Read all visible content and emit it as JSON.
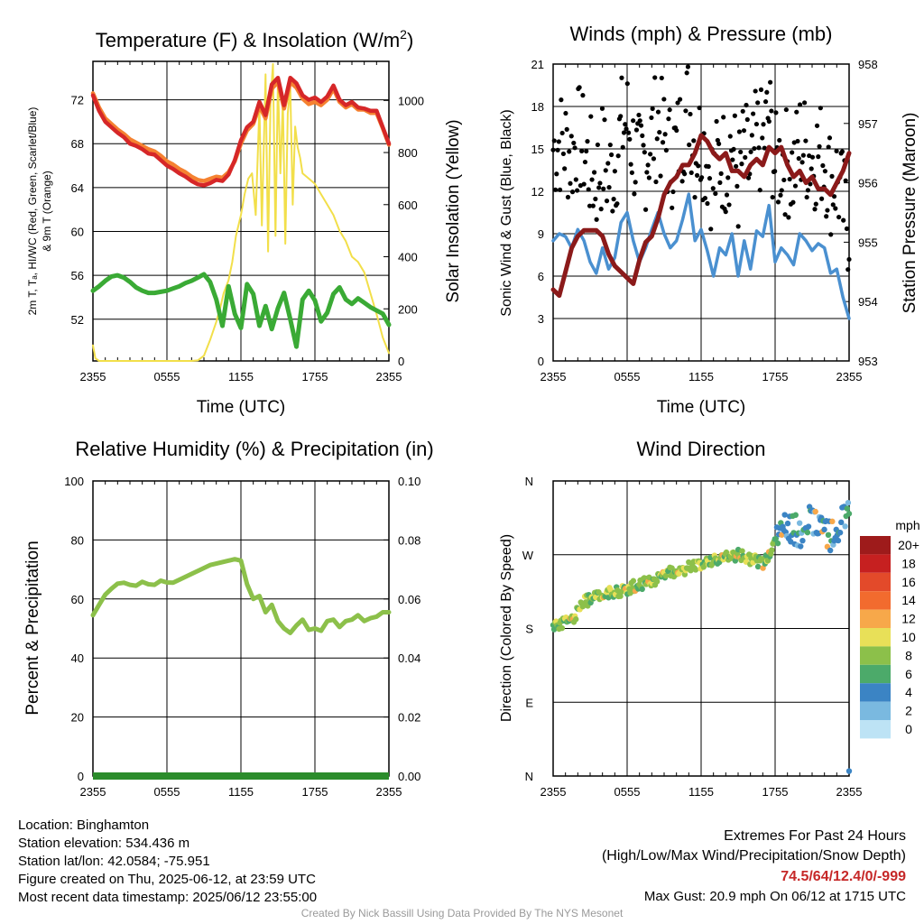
{
  "chart_data": [
    {
      "id": "temp",
      "type": "line",
      "title": "Temperature (F) & Insolation (W/m",
      "title_sup": "2",
      "title_end": ")",
      "xlabel": "Time (UTC)",
      "ylabel_left_lines": [
        "2m T, Tₐ, HI/WC (Red, Green, Scarlet/Blue)",
        "& 9m T (Orange)"
      ],
      "ylabel_right": "Solar Insolation (Yellow)",
      "x_ticks": [
        "2355",
        "0555",
        "1155",
        "1755",
        "2355"
      ],
      "y_left_ticks": [
        "52",
        "56",
        "60",
        "64",
        "68",
        "72"
      ],
      "y_left_lim": [
        48.2,
        75.5
      ],
      "y_right_ticks": [
        "0",
        "200",
        "400",
        "600",
        "800",
        "1000"
      ],
      "y_right_lim": [
        0,
        1150
      ],
      "series": [
        {
          "color": "#d62728",
          "x": [
            0,
            0.5,
            1,
            1.5,
            2,
            2.5,
            3,
            3.5,
            4,
            4.5,
            5,
            5.5,
            6,
            6.5,
            7,
            7.5,
            8,
            8.5,
            9,
            9.5,
            10,
            10.5,
            11,
            11.5,
            12,
            12.5,
            13,
            13.5,
            14,
            14.5,
            15,
            15.5,
            16,
            16.5,
            17,
            17.5,
            18,
            18.5,
            19,
            19.5,
            20,
            20.5,
            21,
            21.5,
            22,
            22.5,
            23,
            23.5,
            24
          ],
          "values": [
            72.4,
            71.0,
            70.0,
            69.5,
            69.0,
            68.6,
            68.0,
            67.8,
            67.5,
            67.1,
            67.0,
            66.5,
            66.0,
            65.7,
            65.3,
            65.0,
            64.6,
            64.3,
            64.2,
            64.4,
            64.7,
            64.6,
            65.2,
            66.5,
            68.3,
            69.5,
            70.0,
            71.8,
            70.6,
            73.4,
            74.0,
            71.5,
            74.0,
            73.5,
            72.4,
            72.0,
            72.2,
            71.8,
            72.3,
            73.3,
            72.0,
            71.5,
            71.8,
            71.3,
            71.2,
            71.0,
            71.0,
            69.5,
            68.0
          ]
        },
        {
          "color": "#f58231",
          "x": [
            0,
            0.5,
            1,
            1.5,
            2,
            2.5,
            3,
            3.5,
            4,
            4.5,
            5,
            5.5,
            6,
            6.5,
            7,
            7.5,
            8,
            8.5,
            9,
            9.5,
            10,
            10.5,
            11,
            11.5,
            12,
            12.5,
            13,
            13.5,
            14,
            14.5,
            15,
            15.5,
            16,
            16.5,
            17,
            17.5,
            18,
            18.5,
            19,
            19.5,
            20,
            20.5,
            21,
            21.5,
            22,
            22.5,
            23,
            23.5,
            24
          ],
          "values": [
            72.6,
            71.3,
            70.3,
            69.8,
            69.3,
            68.9,
            68.4,
            68.1,
            67.8,
            67.5,
            67.3,
            66.9,
            66.4,
            66.1,
            65.7,
            65.4,
            65.0,
            64.7,
            64.6,
            64.8,
            65.0,
            64.9,
            65.4,
            66.4,
            68.0,
            69.2,
            69.8,
            71.4,
            70.3,
            73.0,
            73.6,
            71.2,
            73.6,
            73.1,
            72.1,
            71.6,
            71.8,
            71.5,
            72.0,
            73.0,
            71.8,
            71.3,
            71.6,
            71.1,
            71.1,
            70.8,
            70.8,
            69.4,
            67.9
          ]
        },
        {
          "color": "#3aaa35",
          "x": [
            0,
            0.5,
            1,
            1.5,
            2,
            2.5,
            3,
            3.5,
            4,
            4.5,
            5,
            5.5,
            6,
            6.5,
            7,
            7.5,
            8,
            8.5,
            9,
            9.5,
            10,
            10.5,
            11,
            11.5,
            12,
            12.5,
            13,
            13.5,
            14,
            14.5,
            15,
            15.5,
            16,
            16.5,
            17,
            17.5,
            18,
            18.5,
            19,
            19.5,
            20,
            20.5,
            21,
            21.5,
            22,
            22.5,
            23,
            23.5,
            24
          ],
          "values": [
            54.6,
            55.0,
            55.5,
            55.9,
            56.0,
            55.8,
            55.4,
            54.9,
            54.6,
            54.4,
            54.4,
            54.5,
            54.6,
            54.8,
            55.0,
            55.3,
            55.5,
            55.8,
            56.1,
            55.4,
            53.8,
            51.4,
            55.0,
            52.5,
            51.2,
            55.2,
            54.3,
            51.4,
            53.2,
            51.1,
            53.0,
            54.4,
            52.0,
            49.5,
            53.8,
            54.6,
            53.7,
            51.8,
            52.6,
            54.3,
            54.9,
            53.8,
            53.4,
            53.9,
            53.5,
            53.1,
            52.8,
            52.5,
            51.5
          ]
        }
      ],
      "series_right": [
        {
          "color": "#f2df4a",
          "x": [
            0,
            0.2,
            0.5,
            1,
            1.5,
            2,
            2.5,
            3,
            3.5,
            4,
            4.5,
            5,
            5.5,
            6,
            6.5,
            7,
            7.5,
            8,
            8.5,
            9,
            9.5,
            10,
            10.3,
            10.6,
            11,
            11.3,
            11.6,
            12,
            12.3,
            12.6,
            12.9,
            13.2,
            13.5,
            13.7,
            14,
            14.2,
            14.4,
            14.6,
            14.8,
            15,
            15.2,
            15.4,
            15.6,
            15.8,
            16,
            16.2,
            16.4,
            16.6,
            16.8,
            17,
            17.5,
            18,
            18.5,
            19,
            19.5,
            20,
            20.5,
            21,
            21.5,
            22,
            22.5,
            23,
            23.5,
            24
          ],
          "values": [
            60,
            10,
            0,
            0,
            0,
            0,
            0,
            0,
            0,
            0,
            0,
            0,
            0,
            0,
            0,
            0,
            0,
            0,
            2,
            20,
            80,
            150,
            200,
            260,
            310,
            380,
            480,
            560,
            640,
            700,
            720,
            560,
            980,
            520,
            1100,
            420,
            1000,
            1140,
            480,
            1080,
            720,
            1000,
            450,
            950,
            1050,
            600,
            900,
            820,
            780,
            720,
            700,
            680,
            640,
            600,
            560,
            500,
            460,
            400,
            380,
            340,
            260,
            180,
            90,
            30
          ]
        }
      ]
    },
    {
      "id": "winds",
      "type": "scatter",
      "title": "Winds (mph) & Pressure (mb)",
      "xlabel": "Time (UTC)",
      "ylabel_left": "Sonic Wind & Gust (Blue, Black)",
      "ylabel_right": "Station Pressure (Maroon)",
      "x_ticks": [
        "2355",
        "0555",
        "1155",
        "1755",
        "2355"
      ],
      "y_left_ticks": [
        "0",
        "3",
        "6",
        "9",
        "12",
        "15",
        "18",
        "21"
      ],
      "y_left_lim": [
        0,
        21
      ],
      "y_right_ticks": [
        "953",
        "954",
        "955",
        "956",
        "957",
        "958"
      ],
      "y_right_lim": [
        953,
        958
      ],
      "series": [
        {
          "color": "#4a90d0",
          "x": [
            0,
            0.5,
            1,
            1.5,
            2,
            2.5,
            3,
            3.5,
            4,
            4.5,
            5,
            5.5,
            6,
            6.5,
            7,
            7.5,
            8,
            8.5,
            9,
            9.5,
            10,
            10.5,
            11,
            11.5,
            12,
            12.5,
            13,
            13.5,
            14,
            14.5,
            15,
            15.5,
            16,
            16.5,
            17,
            17.5,
            18,
            18.5,
            19,
            19.5,
            20,
            20.5,
            21,
            21.5,
            22,
            22.5,
            23,
            23.5,
            24
          ],
          "values": [
            8.5,
            9.0,
            8.8,
            8.0,
            9.3,
            8.5,
            7.0,
            6.2,
            8.0,
            6.5,
            7.3,
            9.8,
            10.5,
            8.5,
            7.0,
            8.0,
            9.3,
            10.5,
            9.0,
            8.0,
            8.5,
            10.0,
            11.8,
            8.5,
            9.3,
            7.8,
            6.0,
            8.0,
            7.5,
            9.0,
            6.0,
            8.5,
            6.5,
            9.2,
            8.8,
            11.0,
            7.0,
            8.0,
            7.5,
            6.8,
            9.0,
            8.5,
            7.8,
            8.3,
            8.0,
            6.2,
            6.5,
            4.5,
            3.0
          ]
        },
        {
          "color": "#8b1a1a",
          "x": [
            0,
            0.5,
            1,
            1.5,
            2,
            2.5,
            3,
            3.5,
            4,
            4.5,
            5,
            5.5,
            6,
            6.5,
            7,
            7.5,
            8,
            8.5,
            9,
            9.5,
            10,
            10.5,
            11,
            11.5,
            12,
            12.5,
            13,
            13.5,
            14,
            14.5,
            15,
            15.5,
            16,
            16.5,
            17,
            17.5,
            18,
            18.5,
            19,
            19.5,
            20,
            20.5,
            21,
            21.5,
            22,
            22.5,
            23,
            23.5,
            24
          ],
          "values": [
            954.2,
            954.1,
            954.5,
            954.9,
            955.1,
            955.2,
            955.2,
            955.2,
            955.1,
            954.8,
            954.6,
            954.5,
            954.4,
            954.3,
            954.7,
            955.0,
            955.1,
            955.4,
            955.8,
            956.0,
            956.1,
            956.3,
            956.3,
            956.5,
            956.8,
            956.7,
            956.5,
            956.4,
            956.5,
            956.2,
            956.2,
            956.1,
            956.3,
            956.4,
            956.3,
            956.6,
            956.5,
            956.6,
            956.3,
            956.1,
            956.2,
            956.0,
            956.1,
            955.9,
            955.9,
            955.8,
            956.0,
            956.2,
            956.5
          ]
        }
      ],
      "series_right": []
    },
    {
      "id": "rh",
      "type": "line",
      "title": "Relative Humidity (%) & Precipitation (in)",
      "xlabel": "",
      "ylabel_left": "Percent & Precipitation",
      "x_ticks": [
        "2355",
        "0555",
        "1155",
        "1755",
        "2355"
      ],
      "y_left_ticks": [
        "0",
        "20",
        "40",
        "60",
        "80",
        "100"
      ],
      "y_left_lim": [
        0,
        100
      ],
      "y_right_ticks": [
        "0.00",
        "0.02",
        "0.04",
        "0.06",
        "0.08",
        "0.10"
      ],
      "y_right_lim": [
        0,
        0.1
      ],
      "series": [
        {
          "color": "#8cc04a",
          "x": [
            0,
            0.5,
            1,
            1.5,
            2,
            2.5,
            3,
            3.5,
            4,
            4.5,
            5,
            5.5,
            6,
            6.5,
            7,
            7.5,
            8,
            8.5,
            9,
            9.5,
            10,
            10.5,
            11,
            11.5,
            12,
            12.5,
            13,
            13.5,
            14,
            14.5,
            15,
            15.5,
            16,
            16.5,
            17,
            17.5,
            18,
            18.5,
            19,
            19.5,
            20,
            20.5,
            21,
            21.5,
            22,
            22.5,
            23,
            23.5,
            24
          ],
          "values": [
            54.5,
            58.0,
            61.5,
            63.5,
            65.2,
            65.5,
            64.8,
            64.5,
            65.8,
            65.0,
            64.8,
            66.2,
            65.6,
            65.5,
            66.5,
            67.5,
            68.5,
            69.5,
            70.5,
            71.5,
            72.0,
            72.5,
            73.0,
            73.5,
            73.0,
            65.0,
            60.0,
            61.0,
            55.5,
            58.0,
            52.5,
            50.0,
            48.5,
            51.0,
            53.0,
            49.5,
            50.0,
            49.2,
            52.5,
            53.0,
            50.5,
            52.5,
            53.0,
            54.5,
            52.5,
            53.5,
            54.0,
            55.5,
            55.5
          ]
        }
      ],
      "series_right": [
        {
          "color": "#2c8c2c",
          "x": [
            0,
            24
          ],
          "values": [
            0,
            0
          ]
        }
      ]
    },
    {
      "id": "dir",
      "type": "scatter",
      "title": "Wind Direction",
      "xlabel": "",
      "ylabel_left": "Direction (Colored By Speed)",
      "x_ticks": [
        "2355",
        "0555",
        "1155",
        "1755",
        "2355"
      ],
      "y_left_ticks": [
        "N",
        "E",
        "S",
        "W",
        "N"
      ],
      "y_left_lim": [
        0,
        360
      ],
      "legend_title": "mph",
      "legend_entries": [
        "20+",
        "18",
        "16",
        "14",
        "12",
        "10",
        "8",
        "6",
        "4",
        "2",
        "0"
      ],
      "legend_colors": [
        "#9e1b1b",
        "#c62020",
        "#e34a2a",
        "#f26b2e",
        "#f7a84a",
        "#e8e058",
        "#8cc04a",
        "#4caa6a",
        "#3b84c4",
        "#7ab9e0",
        "#bde3f5"
      ],
      "series": [
        {
          "color": "#8cc04a",
          "x": [
            0,
            0.5,
            1,
            1.5,
            2,
            2.5,
            3,
            3.5,
            4,
            4.5,
            5,
            5.5,
            6,
            6.5,
            7,
            7.5,
            8,
            8.5,
            9,
            9.5,
            10,
            10.5,
            11,
            11.5,
            12,
            12.5,
            13,
            13.5,
            14,
            14.5,
            15,
            15.5,
            16,
            16.5,
            17,
            17.5,
            18,
            18.5,
            19,
            19.5,
            20,
            20.5,
            21,
            21.5,
            22,
            22.5,
            23,
            23.5,
            24
          ],
          "values": [
            182,
            186,
            188,
            190,
            200,
            212,
            216,
            220,
            222,
            224,
            224,
            226,
            228,
            232,
            234,
            236,
            238,
            240,
            244,
            248,
            250,
            252,
            254,
            256,
            258,
            260,
            262,
            264,
            266,
            268,
            270,
            268,
            264,
            262,
            258,
            270,
            285,
            300,
            310,
            300,
            296,
            304,
            315,
            298,
            296,
            290,
            300,
            310,
            330
          ]
        }
      ]
    }
  ],
  "info": {
    "location": "Location: Binghamton",
    "elevation": "Station elevation: 534.436 m",
    "latlon": "Station lat/lon: 42.0584; -75.951",
    "created": "Figure created on Thu, 2025-06-12, at 23:59 UTC",
    "recent": "Most recent data timestamp: 2025/06/12 23:55:00"
  },
  "extremes": {
    "title": "Extremes For Past 24 Hours",
    "subtitle": "(High/Low/Max Wind/Precipitation/Snow Depth)",
    "values": "74.5/64/12.4/0/-999",
    "values_color": "#c62828",
    "gust": "Max Gust: 20.9 mph On 06/12 at 1715 UTC"
  },
  "credit": "Created By Nick Bassill Using Data Provided By The NYS Mesonet"
}
